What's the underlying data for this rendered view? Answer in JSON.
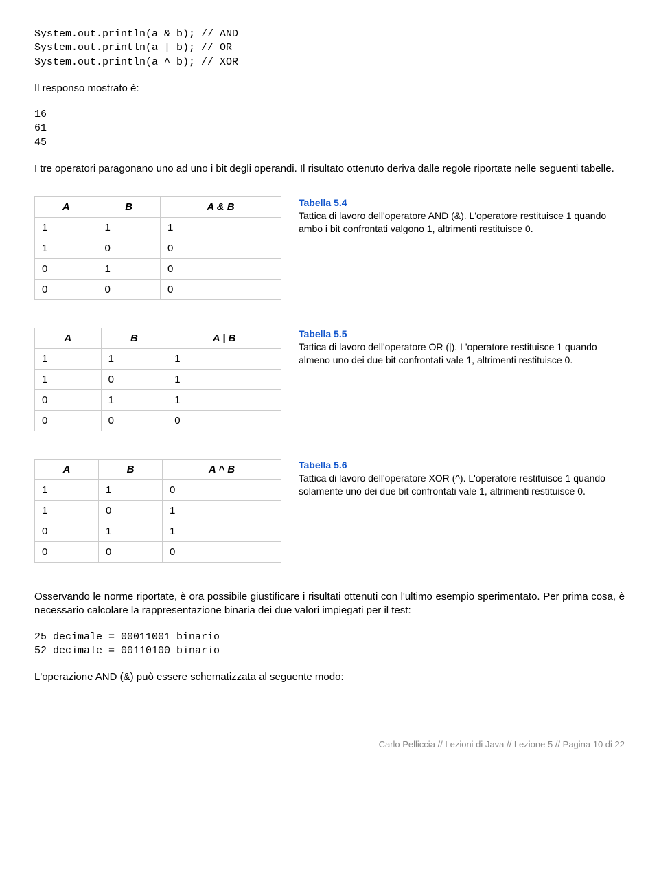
{
  "code1": "System.out.println(a & b); // AND\nSystem.out.println(a | b); // OR\nSystem.out.println(a ^ b); // XOR",
  "p1": "Il responso mostrato è:",
  "code2": "16\n61\n45",
  "p2": "I tre operatori paragonano uno ad uno i bit degli operandi. Il risultato ottenuto deriva dalle regole riportate nelle seguenti tabelle.",
  "table_and": {
    "headers": [
      "A",
      "B",
      "A & B"
    ],
    "rows": [
      [
        "1",
        "1",
        "1"
      ],
      [
        "1",
        "0",
        "0"
      ],
      [
        "0",
        "1",
        "0"
      ],
      [
        "0",
        "0",
        "0"
      ]
    ]
  },
  "desc_and_title": "Tabella 5.4",
  "desc_and_body": "Tattica di lavoro dell'operatore AND (&). L'operatore restituisce 1 quando ambo i bit confrontati valgono 1, altrimenti restituisce 0.",
  "table_or": {
    "headers": [
      "A",
      "B",
      "A | B"
    ],
    "rows": [
      [
        "1",
        "1",
        "1"
      ],
      [
        "1",
        "0",
        "1"
      ],
      [
        "0",
        "1",
        "1"
      ],
      [
        "0",
        "0",
        "0"
      ]
    ]
  },
  "desc_or_title": "Tabella 5.5",
  "desc_or_body": "Tattica di lavoro dell'operatore OR (|). L'operatore restituisce 1 quando almeno uno dei due bit confrontati vale 1, altrimenti restituisce 0.",
  "table_xor": {
    "headers": [
      "A",
      "B",
      "A ^ B"
    ],
    "rows": [
      [
        "1",
        "1",
        "0"
      ],
      [
        "1",
        "0",
        "1"
      ],
      [
        "0",
        "1",
        "1"
      ],
      [
        "0",
        "0",
        "0"
      ]
    ]
  },
  "desc_xor_title": "Tabella 5.6",
  "desc_xor_body": "Tattica di lavoro dell'operatore XOR (^). L'operatore restituisce 1 quando solamente uno dei due bit confrontati vale 1, altrimenti restituisce 0.",
  "p3": "Osservando le norme riportate, è ora possibile giustificare i risultati ottenuti con l'ultimo esempio sperimentato. Per prima cosa, è necessario calcolare la rappresentazione binaria dei due valori impiegati per il test:",
  "code3": "25 decimale = 00011001 binario\n52 decimale = 00110100 binario",
  "p4": "L'operazione AND (&) può essere schematizzata al seguente modo:",
  "footer": "Carlo Pelliccia // Lezioni di Java // Lezione 5 // Pagina 10 di 22"
}
